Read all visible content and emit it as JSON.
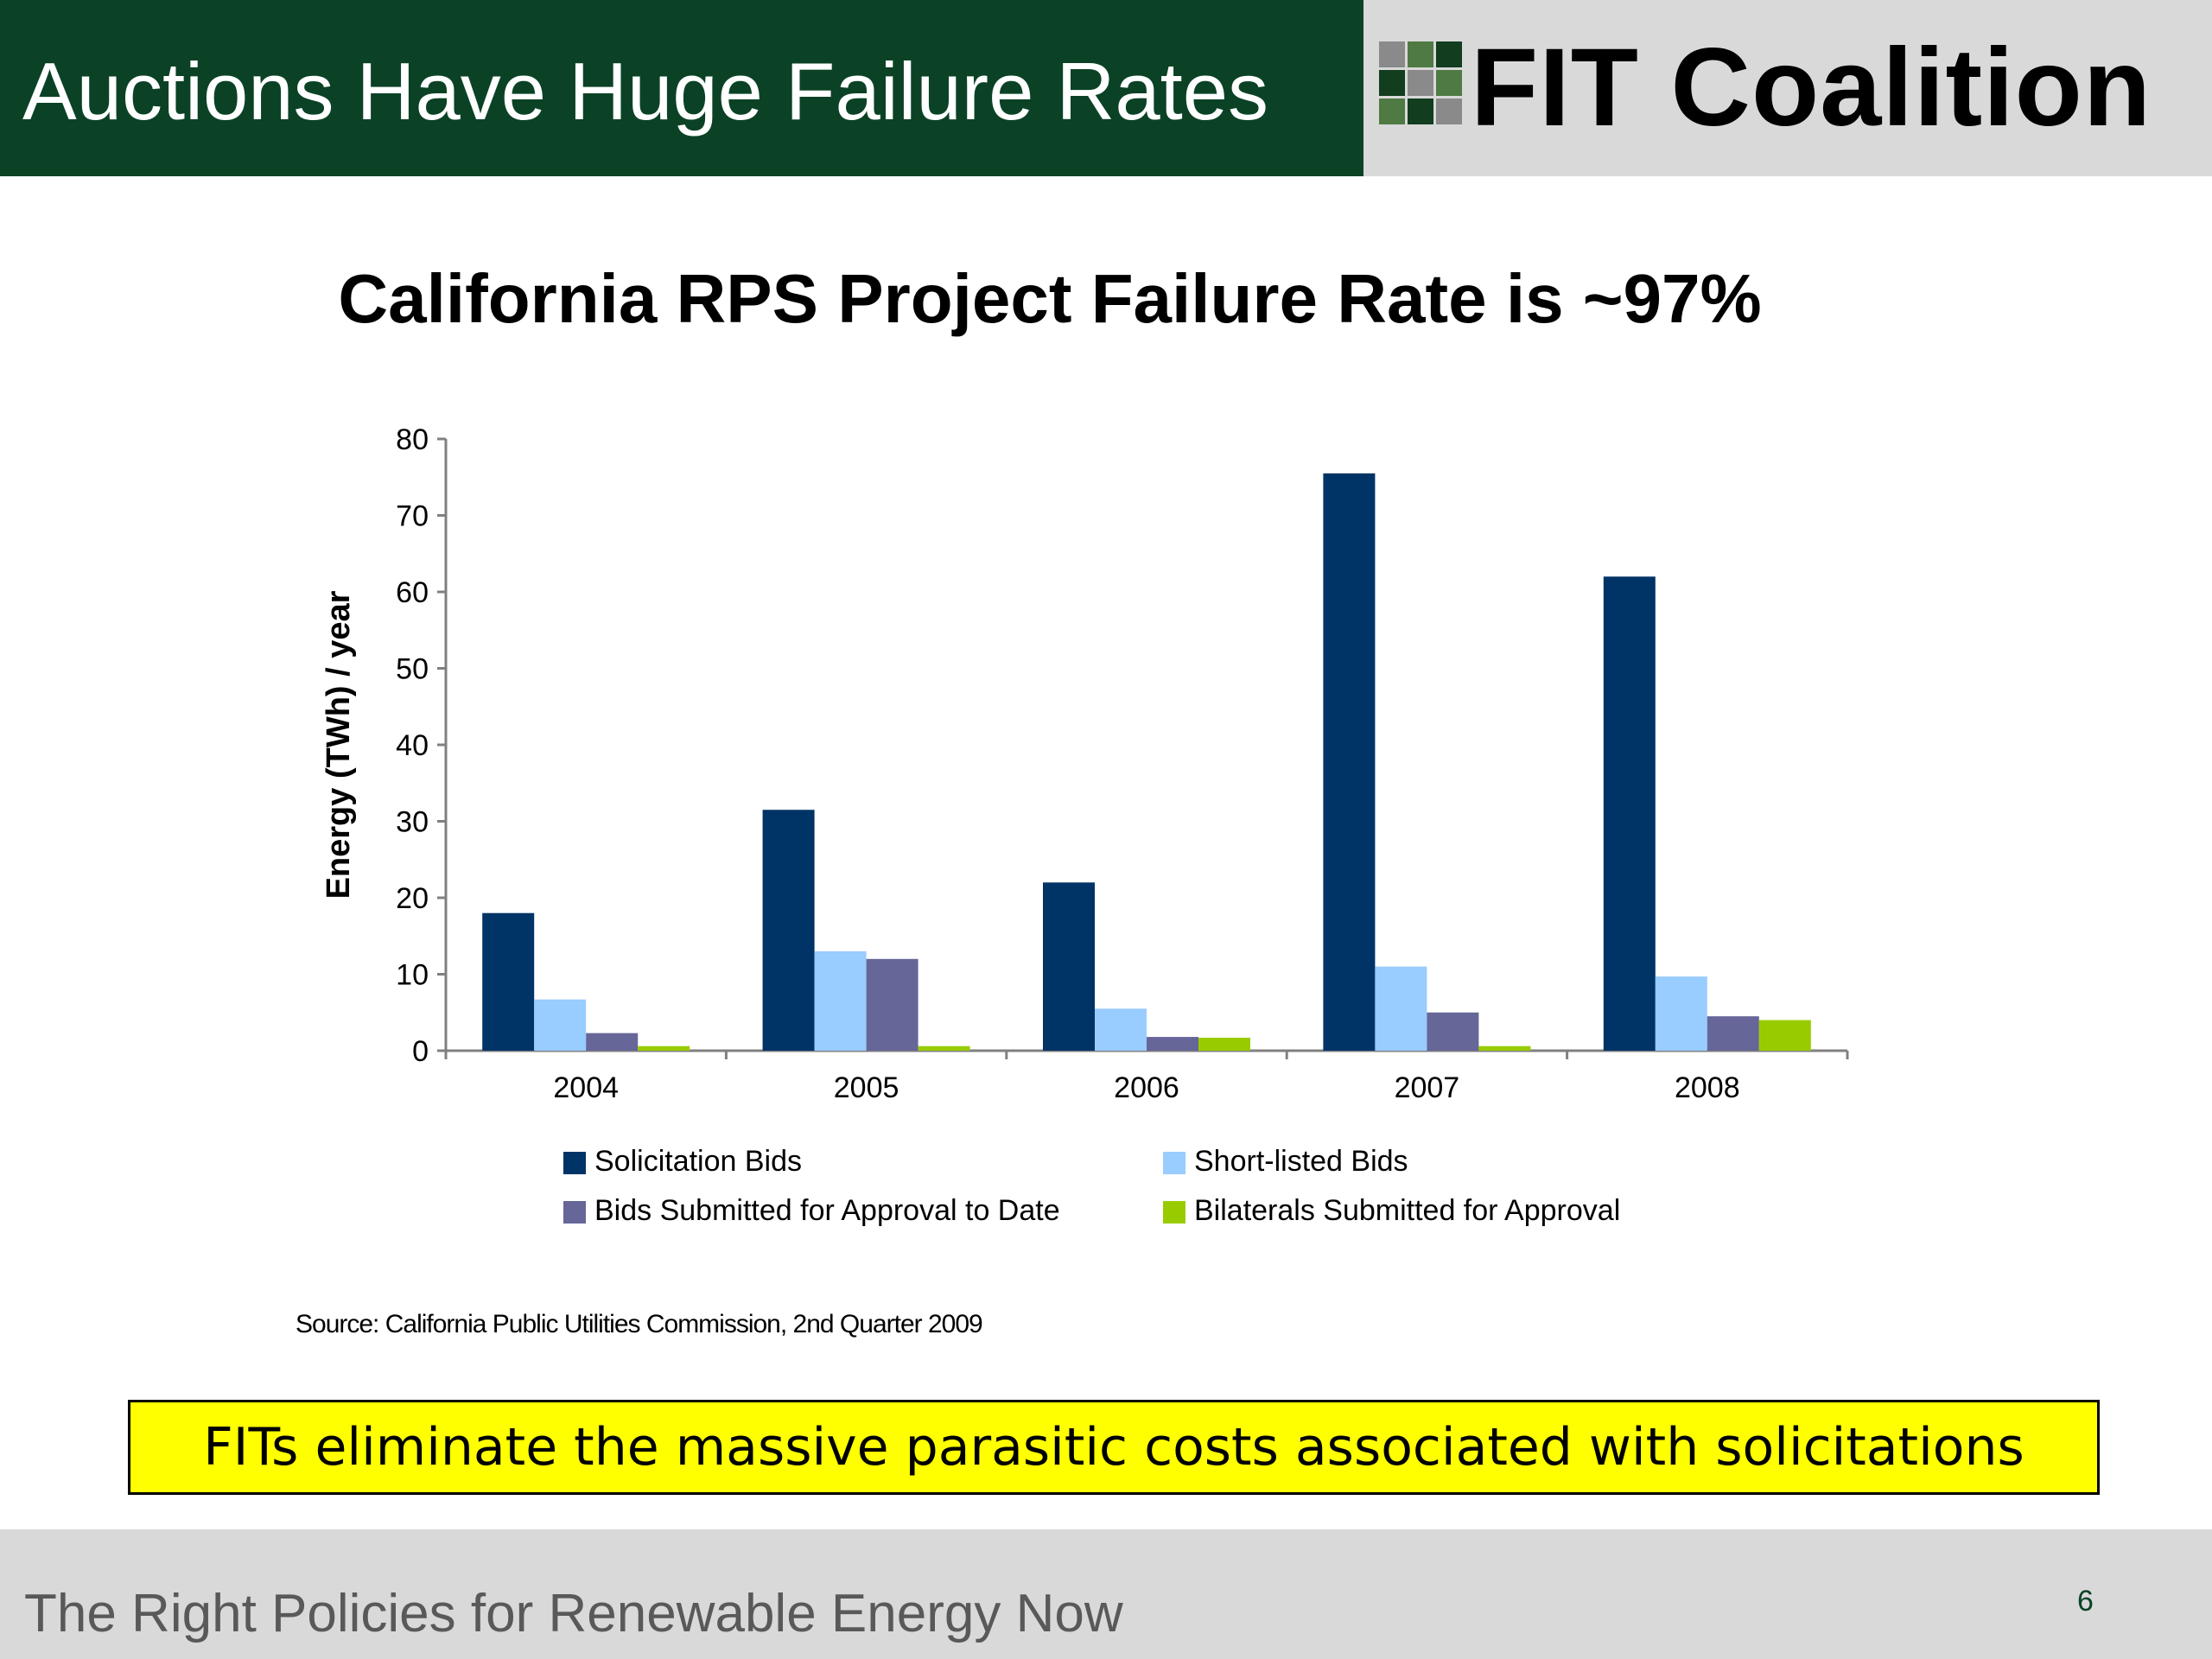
{
  "header": {
    "title": "Auctions Have Huge Failure Rates",
    "logo_text": "FIT Coalition",
    "logo_icon": "grid-logo-icon"
  },
  "heading": "California RPS Project Failure Rate is ~97%",
  "chart_data": {
    "type": "bar",
    "title": "",
    "xlabel": "",
    "ylabel": "Energy (TWh) / year",
    "ylim": [
      0,
      80
    ],
    "yticks": [
      "0",
      "10",
      "20",
      "30",
      "40",
      "50",
      "60",
      "70",
      "80"
    ],
    "categories": [
      "2004",
      "2005",
      "2006",
      "2007",
      "2008"
    ],
    "series": [
      {
        "name": "Solicitation Bids",
        "color": "#003366",
        "values": [
          18,
          31.5,
          22,
          75.5,
          62
        ]
      },
      {
        "name": "Short-listed Bids",
        "color": "#99ccff",
        "values": [
          6.7,
          13,
          5.5,
          11,
          9.7
        ]
      },
      {
        "name": "Bids Submitted for Approval to Date",
        "color": "#666699",
        "values": [
          2.3,
          12,
          1.8,
          5,
          4.5
        ]
      },
      {
        "name": "Bilaterals Submitted for Approval",
        "color": "#99cc00",
        "values": [
          0.6,
          0.6,
          1.7,
          0.6,
          4
        ]
      }
    ],
    "legend_position": "bottom",
    "grid": false
  },
  "source": "Source: California Public Utilities Commission, 2nd Quarter 2009",
  "callout": "FITs eliminate the massive parasitic costs associated with solicitations",
  "footer": {
    "tagline": "The Right Policies for Renewable Energy Now",
    "page_number": "6"
  }
}
